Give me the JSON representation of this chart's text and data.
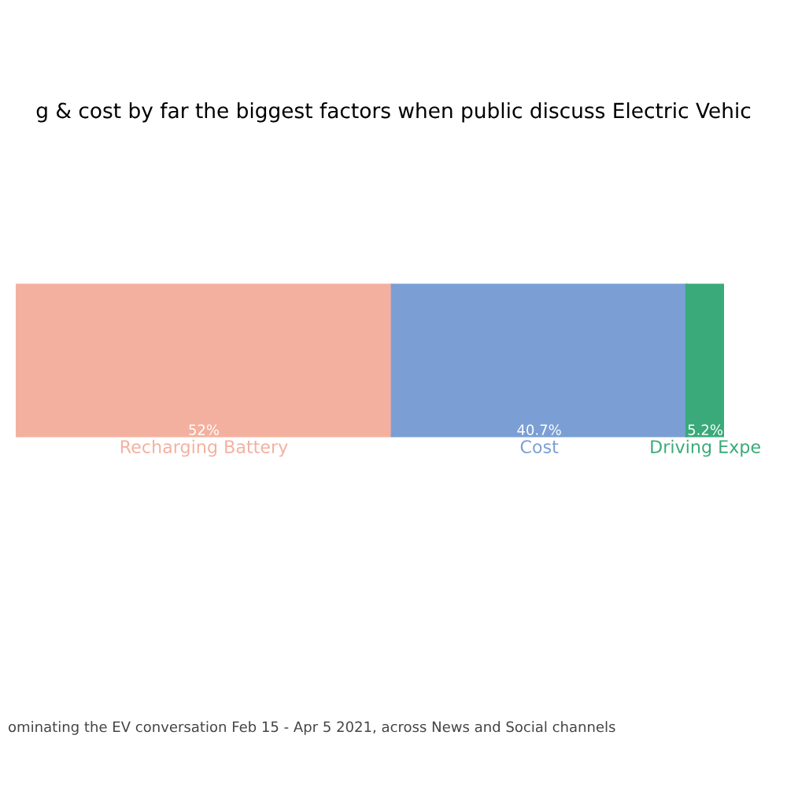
{
  "chart_data": {
    "type": "bar",
    "stacked": true,
    "orientation": "horizontal",
    "title": "g & cost by far the biggest factors when public discuss Electric Vehic",
    "categories": [
      null
    ],
    "series": [
      {
        "name": "Recharging Battery",
        "color": "#f4b09f",
        "values": [
          52
        ],
        "value_labels": [
          "52%"
        ]
      },
      {
        "name": "Cost",
        "color": "#7b9fd4",
        "values": [
          40.7
        ],
        "value_labels": [
          "40.7%"
        ]
      },
      {
        "name": "Driving Expe",
        "color": "#3aaa7a",
        "values": [
          5.2
        ],
        "value_labels": [
          "5.2%"
        ]
      }
    ],
    "annotations": [
      "ominating the EV conversation Feb 15 - Apr 5 2021, across News and Social channels"
    ],
    "legend": false
  }
}
